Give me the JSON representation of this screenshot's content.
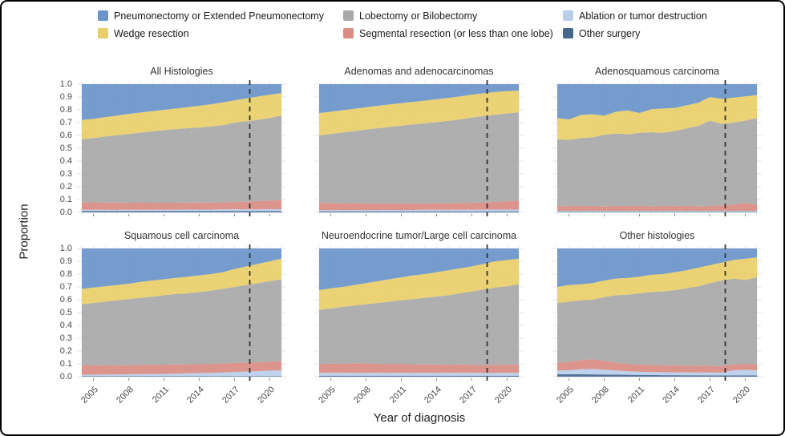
{
  "chart_data": {
    "type": "area",
    "stacked": true,
    "xlabel": "Year of diagnosis",
    "ylabel": "Proportion",
    "ylim": [
      0.0,
      1.0
    ],
    "grid": true,
    "legend_position": "top",
    "years": [
      2004,
      2005,
      2006,
      2007,
      2008,
      2009,
      2010,
      2011,
      2012,
      2013,
      2014,
      2015,
      2016,
      2017,
      2018,
      2019,
      2020,
      2021
    ],
    "x_ticks": [
      2005,
      2008,
      2011,
      2014,
      2017,
      2020
    ],
    "y_ticks": [
      "1.0",
      "0.9",
      "0.8",
      "0.7",
      "0.6",
      "0.5",
      "0.4",
      "0.3",
      "0.2",
      "0.1",
      "0.0"
    ],
    "reference_line_x": 2018.3,
    "reference_line_style": "dashed",
    "stack_order": [
      "other",
      "ablation",
      "segmental",
      "lobectomy",
      "wedge",
      "pneumonectomy"
    ],
    "colors": {
      "pneumonectomy": "#6B95C8",
      "lobectomy": "#A9A9A9",
      "ablation": "#B9CEEC",
      "wedge": "#E8CF6B",
      "segmental": "#D98D84",
      "other": "#47688E",
      "reference_line": "#333333",
      "grid_line": "#E6E6E6"
    },
    "legend": [
      {
        "key": "pneumonectomy",
        "label": "Pneumonectomy or Extended Pneumonectomy"
      },
      {
        "key": "lobectomy",
        "label": "Lobectomy or Bilobectomy"
      },
      {
        "key": "ablation",
        "label": "Ablation or tumor destruction"
      },
      {
        "key": "wedge",
        "label": "Wedge resection"
      },
      {
        "key": "segmental",
        "label": "Segmental resection (or less than one lobe)"
      },
      {
        "key": "other",
        "label": "Other surgery"
      }
    ],
    "panels": [
      {
        "title": "All Histologies",
        "series": {
          "other": [
            0.01,
            0.01,
            0.01,
            0.01,
            0.01,
            0.01,
            0.01,
            0.01,
            0.01,
            0.01,
            0.01,
            0.01,
            0.01,
            0.01,
            0.01,
            0.01,
            0.01,
            0.01
          ],
          "ablation": [
            0.01,
            0.01,
            0.01,
            0.01,
            0.01,
            0.01,
            0.01,
            0.011,
            0.011,
            0.012,
            0.012,
            0.012,
            0.013,
            0.013,
            0.014,
            0.014,
            0.015,
            0.015
          ],
          "segmental": [
            0.06,
            0.058,
            0.057,
            0.056,
            0.055,
            0.055,
            0.055,
            0.054,
            0.054,
            0.054,
            0.054,
            0.055,
            0.055,
            0.057,
            0.059,
            0.064,
            0.067,
            0.07
          ],
          "lobectomy": [
            0.49,
            0.502,
            0.515,
            0.526,
            0.537,
            0.547,
            0.557,
            0.566,
            0.575,
            0.58,
            0.586,
            0.593,
            0.602,
            0.62,
            0.627,
            0.634,
            0.645,
            0.66
          ],
          "wedge": [
            0.15,
            0.15,
            0.151,
            0.153,
            0.156,
            0.157,
            0.158,
            0.159,
            0.16,
            0.164,
            0.169,
            0.173,
            0.178,
            0.174,
            0.179,
            0.182,
            0.181,
            0.175
          ],
          "pneumonectomy": [
            0.28,
            0.27,
            0.257,
            0.245,
            0.232,
            0.221,
            0.21,
            0.2,
            0.19,
            0.18,
            0.169,
            0.157,
            0.142,
            0.126,
            0.111,
            0.096,
            0.082,
            0.07
          ]
        }
      },
      {
        "title": "Adenomas and adenocarcinomas",
        "series": {
          "other": [
            0.008,
            0.008,
            0.008,
            0.008,
            0.008,
            0.008,
            0.008,
            0.008,
            0.008,
            0.008,
            0.008,
            0.008,
            0.008,
            0.008,
            0.008,
            0.008,
            0.008,
            0.008
          ],
          "ablation": [
            0.01,
            0.01,
            0.01,
            0.01,
            0.01,
            0.01,
            0.011,
            0.011,
            0.011,
            0.012,
            0.012,
            0.012,
            0.013,
            0.013,
            0.013,
            0.014,
            0.014,
            0.014
          ],
          "segmental": [
            0.057,
            0.055,
            0.054,
            0.053,
            0.052,
            0.052,
            0.051,
            0.051,
            0.051,
            0.05,
            0.051,
            0.052,
            0.052,
            0.054,
            0.057,
            0.06,
            0.065,
            0.07
          ],
          "lobectomy": [
            0.525,
            0.539,
            0.552,
            0.564,
            0.576,
            0.586,
            0.596,
            0.606,
            0.616,
            0.625,
            0.633,
            0.642,
            0.652,
            0.665,
            0.674,
            0.68,
            0.685,
            0.688
          ],
          "wedge": [
            0.175,
            0.173,
            0.173,
            0.173,
            0.174,
            0.175,
            0.176,
            0.176,
            0.176,
            0.177,
            0.178,
            0.179,
            0.18,
            0.178,
            0.177,
            0.177,
            0.174,
            0.17
          ],
          "pneumonectomy": [
            0.225,
            0.215,
            0.203,
            0.192,
            0.18,
            0.169,
            0.158,
            0.148,
            0.138,
            0.128,
            0.118,
            0.107,
            0.095,
            0.082,
            0.071,
            0.061,
            0.054,
            0.05
          ]
        }
      },
      {
        "title": "Adenosquamous carcinoma",
        "series": {
          "other": [
            0.005,
            0.005,
            0.005,
            0.005,
            0.005,
            0.005,
            0.005,
            0.005,
            0.005,
            0.005,
            0.005,
            0.005,
            0.005,
            0.005,
            0.005,
            0.005,
            0.005,
            0.005
          ],
          "ablation": [
            0.007,
            0.007,
            0.007,
            0.007,
            0.007,
            0.007,
            0.007,
            0.007,
            0.007,
            0.007,
            0.007,
            0.007,
            0.007,
            0.007,
            0.007,
            0.007,
            0.007,
            0.007
          ],
          "segmental": [
            0.038,
            0.036,
            0.04,
            0.038,
            0.036,
            0.038,
            0.04,
            0.038,
            0.036,
            0.038,
            0.04,
            0.038,
            0.036,
            0.038,
            0.043,
            0.048,
            0.063,
            0.048
          ],
          "lobectomy": [
            0.52,
            0.517,
            0.528,
            0.535,
            0.557,
            0.565,
            0.558,
            0.57,
            0.577,
            0.57,
            0.583,
            0.605,
            0.627,
            0.665,
            0.635,
            0.64,
            0.64,
            0.675
          ],
          "wedge": [
            0.165,
            0.16,
            0.18,
            0.18,
            0.15,
            0.17,
            0.185,
            0.155,
            0.18,
            0.19,
            0.18,
            0.18,
            0.18,
            0.185,
            0.195,
            0.195,
            0.19,
            0.18
          ],
          "pneumonectomy": [
            0.265,
            0.275,
            0.24,
            0.235,
            0.245,
            0.215,
            0.205,
            0.225,
            0.195,
            0.19,
            0.185,
            0.165,
            0.145,
            0.1,
            0.115,
            0.105,
            0.095,
            0.085
          ]
        }
      },
      {
        "title": "Squamous cell carcinoma",
        "series": {
          "other": [
            0.005,
            0.005,
            0.005,
            0.005,
            0.005,
            0.005,
            0.005,
            0.005,
            0.005,
            0.005,
            0.005,
            0.005,
            0.005,
            0.005,
            0.005,
            0.005,
            0.005,
            0.005
          ],
          "ablation": [
            0.01,
            0.011,
            0.012,
            0.013,
            0.014,
            0.015,
            0.016,
            0.017,
            0.019,
            0.021,
            0.023,
            0.025,
            0.028,
            0.031,
            0.035,
            0.038,
            0.042,
            0.045
          ],
          "segmental": [
            0.075,
            0.074,
            0.073,
            0.072,
            0.071,
            0.072,
            0.072,
            0.072,
            0.071,
            0.07,
            0.07,
            0.07,
            0.07,
            0.07,
            0.07,
            0.07,
            0.07,
            0.07
          ],
          "lobectomy": [
            0.475,
            0.485,
            0.495,
            0.505,
            0.515,
            0.523,
            0.532,
            0.541,
            0.55,
            0.554,
            0.562,
            0.57,
            0.582,
            0.594,
            0.605,
            0.617,
            0.628,
            0.64
          ],
          "wedge": [
            0.12,
            0.12,
            0.12,
            0.12,
            0.12,
            0.125,
            0.125,
            0.125,
            0.125,
            0.13,
            0.13,
            0.13,
            0.13,
            0.14,
            0.145,
            0.15,
            0.155,
            0.16
          ],
          "pneumonectomy": [
            0.315,
            0.305,
            0.295,
            0.285,
            0.275,
            0.26,
            0.25,
            0.24,
            0.23,
            0.22,
            0.21,
            0.2,
            0.185,
            0.16,
            0.14,
            0.12,
            0.1,
            0.08
          ]
        }
      },
      {
        "title": "Neuroendocrine tumor/Large cell carcinoma",
        "series": {
          "other": [
            0.008,
            0.008,
            0.008,
            0.008,
            0.008,
            0.008,
            0.008,
            0.008,
            0.008,
            0.008,
            0.008,
            0.008,
            0.008,
            0.008,
            0.008,
            0.008,
            0.008,
            0.008
          ],
          "ablation": [
            0.022,
            0.022,
            0.022,
            0.022,
            0.022,
            0.022,
            0.022,
            0.022,
            0.022,
            0.022,
            0.022,
            0.022,
            0.022,
            0.022,
            0.022,
            0.022,
            0.022,
            0.022
          ],
          "segmental": [
            0.07,
            0.072,
            0.07,
            0.075,
            0.073,
            0.07,
            0.068,
            0.07,
            0.067,
            0.065,
            0.065,
            0.063,
            0.065,
            0.062,
            0.06,
            0.062,
            0.063,
            0.065
          ],
          "lobectomy": [
            0.42,
            0.43,
            0.445,
            0.45,
            0.462,
            0.475,
            0.487,
            0.495,
            0.508,
            0.52,
            0.53,
            0.542,
            0.555,
            0.573,
            0.59,
            0.603,
            0.612,
            0.625
          ],
          "wedge": [
            0.155,
            0.158,
            0.155,
            0.16,
            0.165,
            0.17,
            0.175,
            0.18,
            0.185,
            0.185,
            0.19,
            0.195,
            0.195,
            0.195,
            0.2,
            0.205,
            0.205,
            0.2
          ],
          "pneumonectomy": [
            0.325,
            0.31,
            0.3,
            0.285,
            0.27,
            0.255,
            0.24,
            0.225,
            0.21,
            0.2,
            0.185,
            0.17,
            0.155,
            0.14,
            0.12,
            0.1,
            0.09,
            0.08
          ]
        }
      },
      {
        "title": "Other histologies",
        "series": {
          "other": [
            0.02,
            0.019,
            0.019,
            0.018,
            0.017,
            0.016,
            0.015,
            0.014,
            0.013,
            0.012,
            0.012,
            0.011,
            0.011,
            0.01,
            0.01,
            0.01,
            0.01,
            0.01
          ],
          "ablation": [
            0.028,
            0.031,
            0.039,
            0.042,
            0.038,
            0.032,
            0.027,
            0.024,
            0.023,
            0.023,
            0.022,
            0.023,
            0.022,
            0.023,
            0.022,
            0.04,
            0.045,
            0.038
          ],
          "segmental": [
            0.062,
            0.065,
            0.072,
            0.075,
            0.07,
            0.062,
            0.058,
            0.057,
            0.056,
            0.055,
            0.054,
            0.053,
            0.053,
            0.052,
            0.051,
            0.045,
            0.045,
            0.047
          ],
          "lobectomy": [
            0.465,
            0.47,
            0.465,
            0.465,
            0.495,
            0.525,
            0.54,
            0.555,
            0.568,
            0.575,
            0.587,
            0.603,
            0.619,
            0.645,
            0.667,
            0.67,
            0.655,
            0.68
          ],
          "wedge": [
            0.125,
            0.13,
            0.125,
            0.13,
            0.13,
            0.13,
            0.13,
            0.13,
            0.135,
            0.135,
            0.14,
            0.14,
            0.145,
            0.14,
            0.14,
            0.145,
            0.165,
            0.155
          ],
          "pneumonectomy": [
            0.3,
            0.285,
            0.28,
            0.27,
            0.25,
            0.235,
            0.23,
            0.22,
            0.205,
            0.2,
            0.185,
            0.17,
            0.15,
            0.13,
            0.11,
            0.09,
            0.08,
            0.07
          ]
        }
      }
    ]
  }
}
